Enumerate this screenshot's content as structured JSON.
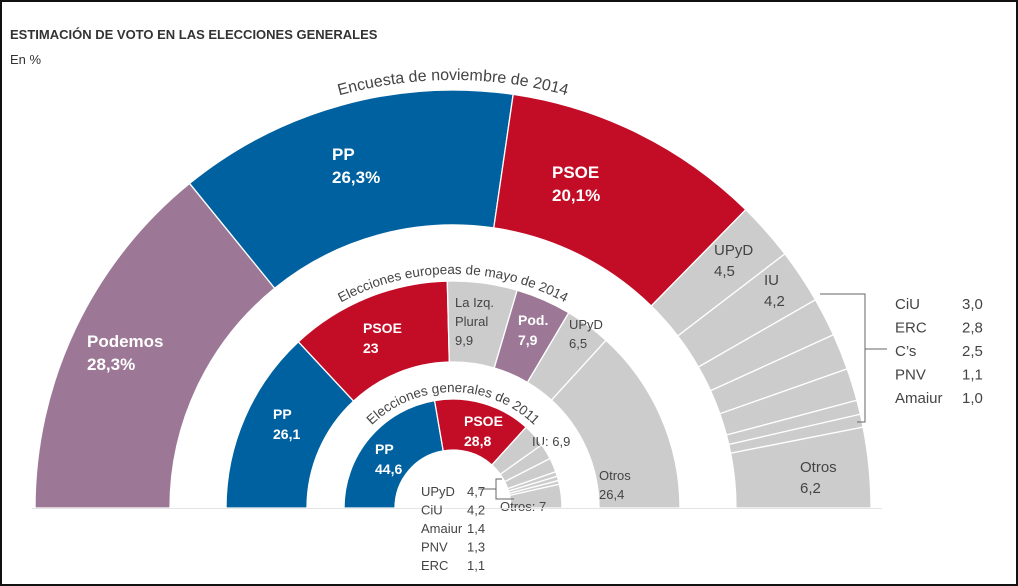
{
  "chart_data": {
    "type": "pie",
    "variant": "semicircle-donut-nested",
    "title": "ESTIMACIÓN DE VOTO EN LAS ELECCIONES GENERALES",
    "subtitle": "En %",
    "colors": {
      "PP": "#0061a0",
      "PSOE": "#c30c26",
      "Podemos": "#9c7896",
      "other": "#cccccc"
    },
    "rings": [
      {
        "name": "Encuesta de noviembre de 2014",
        "slices": [
          {
            "label": "Podemos",
            "value": 28.3,
            "display": "28,3%",
            "color": "#9c7896",
            "text_color": "#ffffff",
            "bold": true
          },
          {
            "label": "PP",
            "value": 26.3,
            "display": "26,3%",
            "color": "#0061a0",
            "text_color": "#ffffff",
            "bold": true
          },
          {
            "label": "PSOE",
            "value": 20.1,
            "display": "20,1%",
            "color": "#c30c26",
            "text_color": "#ffffff",
            "bold": true
          },
          {
            "label": "UPyD",
            "value": 4.5,
            "display": "4,5",
            "color": "#cccccc",
            "text_color": "#444444"
          },
          {
            "label": "IU",
            "value": 4.2,
            "display": "4,2",
            "color": "#cccccc",
            "text_color": "#444444"
          },
          {
            "label": "CiU",
            "value": 3.0,
            "display": "3,0",
            "color": "#cccccc",
            "callout": true
          },
          {
            "label": "ERC",
            "value": 2.8,
            "display": "2,8",
            "color": "#cccccc",
            "callout": true
          },
          {
            "label": "C’s",
            "value": 2.5,
            "display": "2,5",
            "color": "#cccccc",
            "callout": true
          },
          {
            "label": "PNV",
            "value": 1.1,
            "display": "1,1",
            "color": "#cccccc",
            "callout": true
          },
          {
            "label": "Amaiur",
            "value": 1.0,
            "display": "1,0",
            "color": "#cccccc",
            "callout": true
          },
          {
            "label": "Otros",
            "value": 6.2,
            "display": "6,2",
            "color": "#cccccc",
            "text_color": "#444444"
          }
        ]
      },
      {
        "name": "Elecciones europeas de mayo de 2014",
        "slices": [
          {
            "label": "PP",
            "value": 26.1,
            "display": "26,1",
            "color": "#0061a0",
            "text_color": "#ffffff",
            "bold": true
          },
          {
            "label": "PSOE",
            "value": 23,
            "display": "23",
            "color": "#c30c26",
            "text_color": "#ffffff",
            "bold": true
          },
          {
            "label": "La Izq. Plural",
            "label_lines": [
              "La Izq.",
              "Plural"
            ],
            "value": 9.9,
            "display": "9,9",
            "color": "#cccccc",
            "text_color": "#444444"
          },
          {
            "label": "Pod.",
            "value": 7.9,
            "display": "7,9",
            "color": "#9c7896",
            "text_color": "#ffffff",
            "bold": true
          },
          {
            "label": "UPyD",
            "value": 6.5,
            "display": "6,5",
            "color": "#cccccc",
            "text_color": "#444444"
          },
          {
            "label": "Otros",
            "value": 26.4,
            "display": "26,4",
            "color": "#cccccc",
            "text_color": "#444444"
          }
        ]
      },
      {
        "name": "Elecciones generales de 2011",
        "slices": [
          {
            "label": "PP",
            "value": 44.6,
            "display": "44,6",
            "color": "#0061a0",
            "text_color": "#ffffff",
            "bold": true
          },
          {
            "label": "PSOE",
            "value": 28.8,
            "display": "28,8",
            "color": "#c30c26",
            "text_color": "#ffffff",
            "bold": true
          },
          {
            "label": "IU",
            "value": 6.9,
            "display": "IU: 6,9",
            "color": "#cccccc"
          },
          {
            "label": "UPyD",
            "value": 4.7,
            "display": "4,7",
            "color": "#cccccc",
            "callout": true
          },
          {
            "label": "CiU",
            "value": 4.2,
            "display": "4,2",
            "color": "#cccccc",
            "callout": true
          },
          {
            "label": "Amaiur",
            "value": 1.4,
            "display": "1,4",
            "color": "#cccccc",
            "callout": true
          },
          {
            "label": "PNV",
            "value": 1.3,
            "display": "1,3",
            "color": "#cccccc",
            "callout": true
          },
          {
            "label": "ERC",
            "value": 1.1,
            "display": "1,1",
            "color": "#cccccc",
            "callout": true
          },
          {
            "label": "Otros",
            "value": 7,
            "display": "Otros: 7",
            "color": "#cccccc"
          }
        ]
      }
    ],
    "legend": "none"
  }
}
